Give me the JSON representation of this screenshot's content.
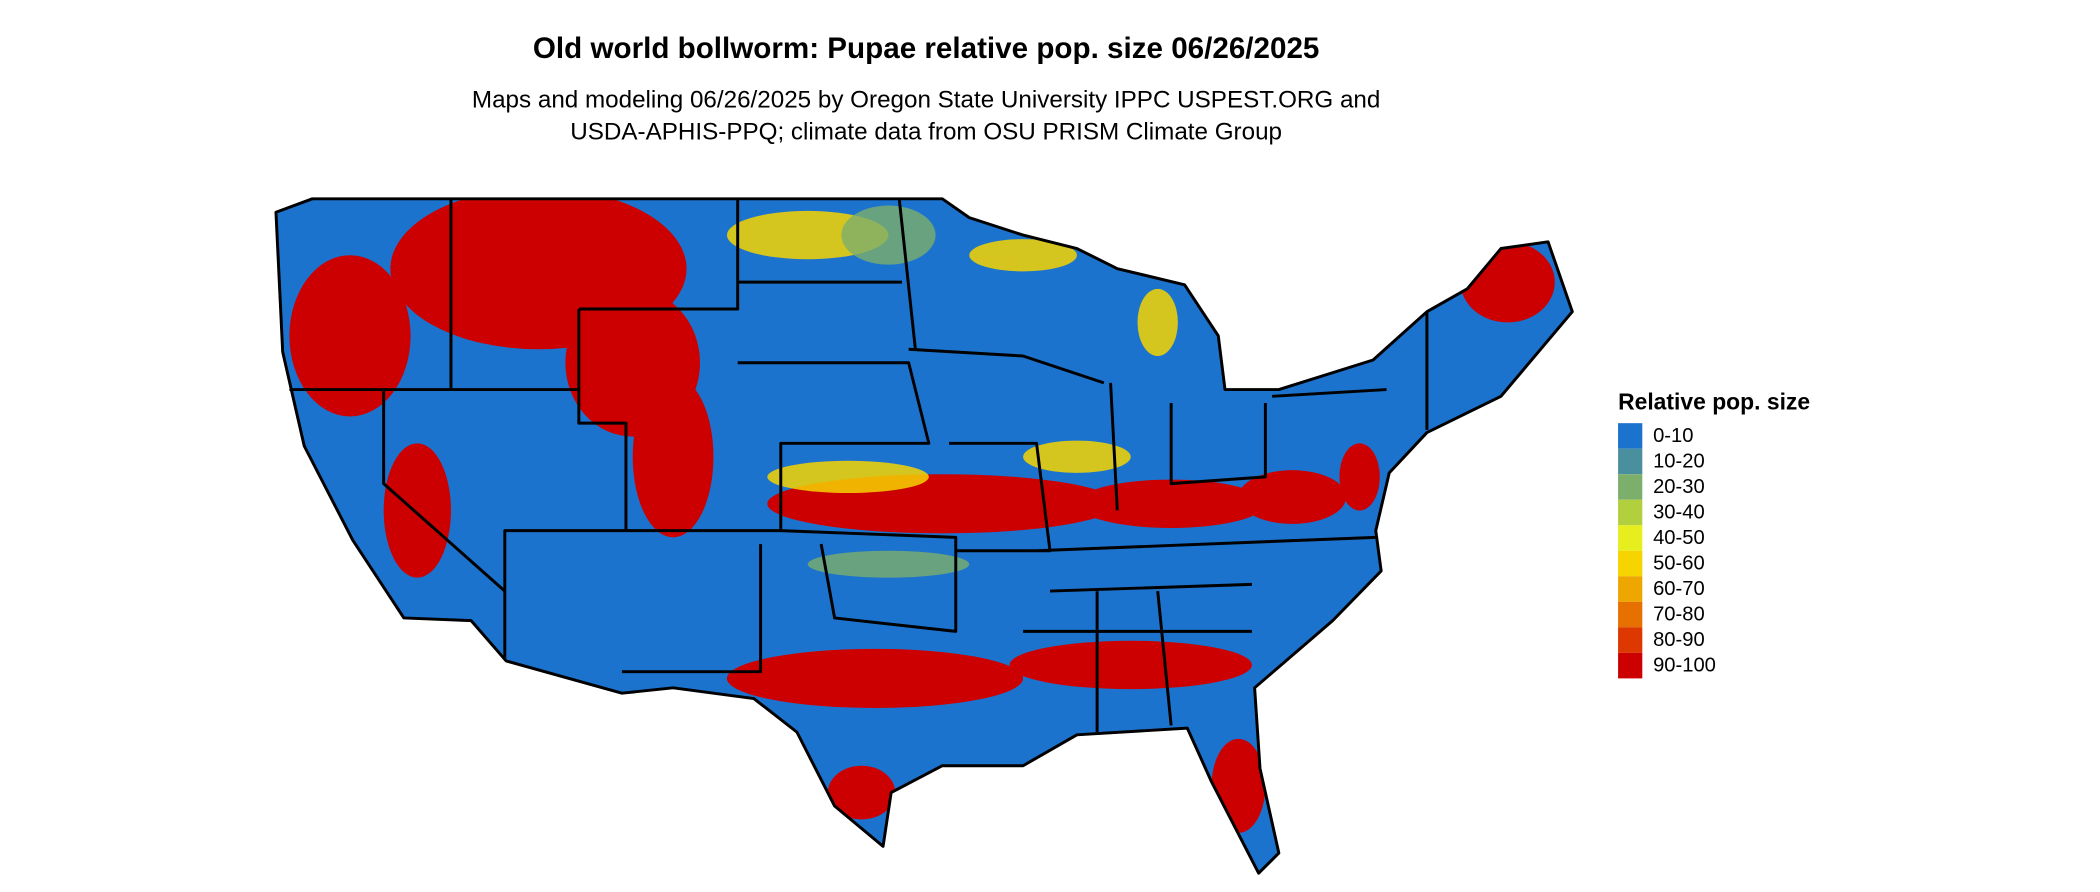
{
  "title": "Old world bollworm: Pupae relative pop. size 06/26/2025",
  "subtitle": [
    "Maps and modeling 06/26/2025 by Oregon State University IPPC USPEST.ORG and",
    "USDA-APHIS-PPQ; climate data from OSU PRISM Climate Group"
  ],
  "legend": {
    "title": "Relative pop. size",
    "items": [
      {
        "label": "0-10",
        "color": "#1c73cd"
      },
      {
        "label": "10-20",
        "color": "#4a8f9e"
      },
      {
        "label": "20-30",
        "color": "#7cae6c"
      },
      {
        "label": "30-40",
        "color": "#b2d03e"
      },
      {
        "label": "40-50",
        "color": "#e6ee1e"
      },
      {
        "label": "50-60",
        "color": "#f6d400"
      },
      {
        "label": "60-70",
        "color": "#eea600"
      },
      {
        "label": "70-80",
        "color": "#e67000"
      },
      {
        "label": "80-90",
        "color": "#dc3800"
      },
      {
        "label": "90-100",
        "color": "#cc0000"
      }
    ]
  }
}
